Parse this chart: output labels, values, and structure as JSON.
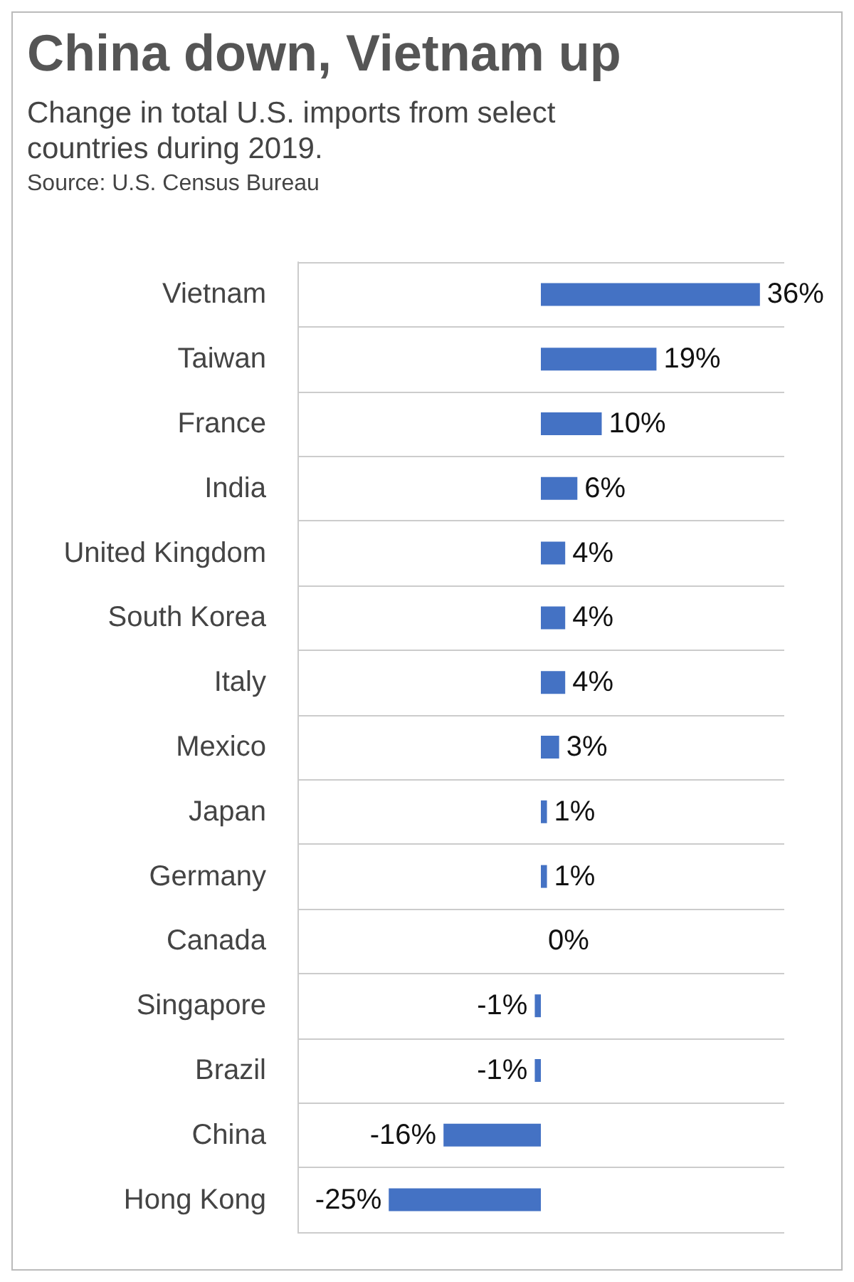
{
  "chart_data": {
    "type": "bar",
    "orientation": "horizontal",
    "title": "China down, Vietnam up",
    "subtitle": "Change in total U.S. imports from select countries during 2019.",
    "annotations": [
      "Source: U.S. Census Bureau"
    ],
    "categories": [
      "Vietnam",
      "Taiwan",
      "France",
      "India",
      "United Kingdom",
      "South Korea",
      "Italy",
      "Mexico",
      "Japan",
      "Germany",
      "Canada",
      "Singapore",
      "Brazil",
      "China",
      "Hong Kong"
    ],
    "values": [
      36,
      19,
      10,
      6,
      4,
      4,
      4,
      3,
      1,
      1,
      0,
      -1,
      -1,
      -16,
      -25
    ],
    "value_labels": [
      "36%",
      "19%",
      "10%",
      "6%",
      "4%",
      "4%",
      "4%",
      "3%",
      "1%",
      "1%",
      "0%",
      "-1%",
      "-1%",
      "-16%",
      "-25%"
    ],
    "color": "#4472c4",
    "xlim": [
      -40,
      40
    ],
    "tick_labels": "y",
    "grid": "y"
  }
}
